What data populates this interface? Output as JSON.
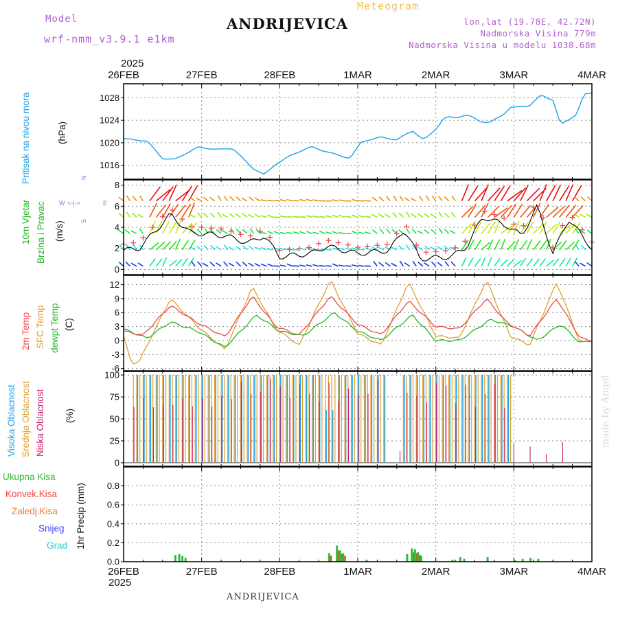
{
  "header": {
    "model_label": "Model",
    "model_value": "wrf-nmm_v3.9.1  e1km",
    "station": "ANDRIJEVICA",
    "meteogram": "Meteogram",
    "lonlat": "lon,lat (19.78E, 42.72N)",
    "elevation": "Nadmorska Visina 779m",
    "model_elevation": "Nadmorska Visina u modelu 1038.68m"
  },
  "x_axis": {
    "year": "2025",
    "dates": [
      "26FEB",
      "27FEB",
      "28FEB",
      "1MAR",
      "2MAR",
      "3MAR",
      "4MAR"
    ]
  },
  "footer": {
    "station": "ANDRIJEVICA",
    "credit": "made by Angel"
  },
  "colors": {
    "pressure": "#1aa3e8",
    "temp2m": "#f04848",
    "sfc": "#e0a030",
    "dew": "#22b822",
    "windspeed": "#000000",
    "gust_marker": "#f04848",
    "high_cloud": "#1aa3e8",
    "mid_cloud": "#e0a030",
    "low_cloud": "#d01870",
    "precip_total": "#33bb33",
    "precip_conv": "#ee4444",
    "precip_frozen": "#ee7733",
    "precip_snow": "#4444ff",
    "precip_hail": "#33cccc"
  },
  "panels": {
    "pressure": {
      "label": "Pritisak na nivou mora",
      "unit": "(hPa)"
    },
    "wind": {
      "label1": "10m Vjetar",
      "label2": "Brzina i Pravac",
      "unit": "(m/s)",
      "compass_n": "N",
      "compass_s": "S",
      "compass_w": "W",
      "compass_e": "E",
      "compass_we": "<-|->"
    },
    "temp": {
      "label1": "2m Temp",
      "label2": "SFC Temp",
      "label3": "dewpt Temp",
      "unit": "(C)"
    },
    "cloud": {
      "label1": "Visoka Oblacnost",
      "label2": "Srednja Oblacnost",
      "label3": "Niska Oblacnost",
      "unit": "(%)"
    },
    "precip": {
      "unit": "1hr Precip (mm)",
      "legend": [
        "Ukupna Kisa",
        "Konvek.Kisa",
        "Zaledj.Kisa",
        "Snijeg",
        "Grad"
      ]
    }
  },
  "chart_data": [
    {
      "type": "line",
      "title": "Pritisak na nivou mora",
      "ylabel": "(hPa)",
      "x": [
        "26FEB",
        "27FEB",
        "28FEB",
        "1MAR",
        "2MAR",
        "3MAR",
        "4MAR"
      ],
      "ylim": [
        1013.5,
        1030.5
      ],
      "yticks": [
        1016,
        1020,
        1024,
        1028
      ],
      "series": [
        {
          "name": "Pritisak na nivou mora",
          "values": [
            1020.6,
            1019.0,
            1018.0,
            1021.0,
            1025.0,
            1026.8,
            1028.8
          ]
        }
      ]
    },
    {
      "type": "line",
      "title": "10m Vjetar Brzina i Pravac",
      "ylabel": "(m/s)",
      "x": [
        "26FEB",
        "27FEB",
        "28FEB",
        "1MAR",
        "2MAR",
        "3MAR",
        "4MAR"
      ],
      "ylim": [
        -0.5,
        8.5
      ],
      "yticks": [
        0,
        2,
        4,
        6,
        8
      ],
      "series": [
        {
          "name": "10m Vjetar",
          "values": [
            1.8,
            2.5,
            1.2,
            1.5,
            1.5,
            4.5,
            2.0
          ]
        }
      ]
    },
    {
      "type": "line",
      "title": "Temp",
      "ylabel": "(C)",
      "x": [
        "26FEB",
        "27FEB",
        "28FEB",
        "1MAR",
        "2MAR",
        "3MAR",
        "4MAR"
      ],
      "ylim": [
        -6.5,
        14
      ],
      "yticks": [
        -6,
        -3,
        0,
        3,
        6,
        9,
        12
      ],
      "series": [
        {
          "name": "2m Temp",
          "values": [
            2.0,
            1.5,
            1.0,
            1.5,
            2.5,
            2.5,
            0.0
          ]
        },
        {
          "name": "SFC Temp",
          "values": [
            0.5,
            0.5,
            0.0,
            -1.0,
            0.5,
            0.0,
            -0.5
          ]
        },
        {
          "name": "dewpt Temp",
          "values": [
            1.5,
            0.5,
            0.5,
            1.5,
            -0.5,
            2.0,
            0.0
          ]
        }
      ]
    },
    {
      "type": "bar",
      "title": "Oblacnost",
      "ylabel": "(%)",
      "x": [
        "26FEB",
        "27FEB",
        "28FEB",
        "1MAR",
        "2MAR",
        "3MAR",
        "4MAR"
      ],
      "ylim": [
        -4,
        104
      ],
      "yticks": [
        0,
        25,
        50,
        75,
        100
      ],
      "series": [
        {
          "name": "Visoka Oblacnost",
          "values": [
            0,
            100,
            100,
            100,
            100,
            100,
            0
          ]
        },
        {
          "name": "Srednja Oblacnost",
          "values": [
            0,
            100,
            100,
            100,
            100,
            100,
            0
          ]
        },
        {
          "name": "Niska Oblacnost",
          "values": [
            0,
            100,
            100,
            0,
            100,
            100,
            0
          ]
        }
      ]
    },
    {
      "type": "bar",
      "title": "1hr Precip",
      "ylabel": "(mm)",
      "x": [
        "26FEB",
        "27FEB",
        "28FEB",
        "1MAR",
        "2MAR",
        "3MAR",
        "4MAR"
      ],
      "ylim": [
        0,
        1.0
      ],
      "yticks": [
        0,
        0.2,
        0.4,
        0.6,
        0.8
      ],
      "series": [
        {
          "name": "Ukupna Kisa",
          "values": [
            0,
            0,
            0,
            0,
            0.02,
            0.02,
            0
          ]
        },
        {
          "name": "Konvek.Kisa",
          "values": [
            0,
            0,
            0,
            0,
            0,
            0,
            0
          ]
        }
      ]
    }
  ]
}
